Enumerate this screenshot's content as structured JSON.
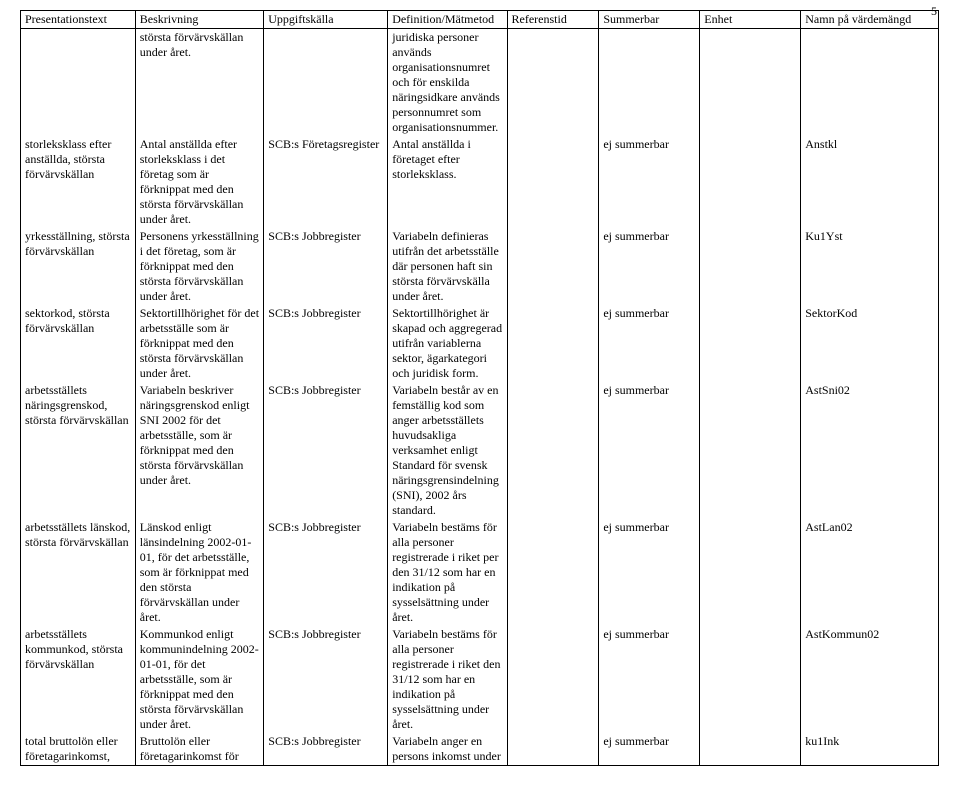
{
  "page_number": "5",
  "columns": [
    "Presentationstext",
    "Beskrivning",
    "Uppgiftskälla",
    "Definition/Mätmetod",
    "Referenstid",
    "Summerbar",
    "Enhet",
    "Namn på värdemängd"
  ],
  "rows": [
    {
      "c1": "",
      "c2": "största förvärvskällan under året.",
      "c3": "",
      "c4": "juridiska personer används organisationsnumret och för enskilda näringsidkare används personnumret som organisationsnummer.",
      "c5": "",
      "c6": "",
      "c7": "",
      "c8": ""
    },
    {
      "c1": "storleksklass efter anställda, största förvärvskällan",
      "c2": "Antal anställda efter storleksklass i det företag som är förknippat med den största förvärvskällan under året.",
      "c3": "SCB:s Företagsregister",
      "c4": "Antal anställda i företaget efter storleksklass.",
      "c5": "",
      "c6": "ej summerbar",
      "c7": "",
      "c8": "Anstkl"
    },
    {
      "c1": "yrkesställning, största förvärvskällan",
      "c2": "Personens yrkesställning i det företag, som är förknippat med den största förvärvskällan under året.",
      "c3": "SCB:s Jobbregister",
      "c4": "Variabeln definieras utifrån det arbetsställe där personen haft sin största förvärvskälla under året.",
      "c5": "",
      "c6": "ej summerbar",
      "c7": "",
      "c8": "Ku1Yst"
    },
    {
      "c1": "sektorkod, största förvärvskällan",
      "c2": "Sektortillhörighet för det arbetsställe som är förknippat med den största förvärvskällan under året.",
      "c3": "SCB:s Jobbregister",
      "c4": "Sektortillhörighet är skapad och aggregerad utifrån variablerna sektor, ägarkategori och juridisk form.",
      "c5": "",
      "c6": "ej summerbar",
      "c7": "",
      "c8": "SektorKod"
    },
    {
      "c1": "arbetsställets näringsgrenskod, största förvärvskällan",
      "c2": "Variabeln beskriver näringsgrenskod enligt SNI 2002 för det arbetsställe, som är förknippat med den största förvärvskällan under året.",
      "c3": "SCB:s Jobbregister",
      "c4": "Variabeln består av en femställig kod som anger arbetsställets huvudsakliga verksamhet enligt Standard för svensk näringsgrensindelning (SNI), 2002 års standard.",
      "c5": "",
      "c6": "ej summerbar",
      "c7": "",
      "c8": "AstSni02"
    },
    {
      "c1": "arbetsställets länskod, största förvärvskällan",
      "c2": "Länskod enligt länsindelning 2002-01-01, för det arbetsställe, som är förknippat med den största förvärvskällan under året.",
      "c3": "SCB:s Jobbregister",
      "c4": "Variabeln bestäms för alla personer registrerade i riket per den 31/12 som har en indikation på sysselsättning under året.",
      "c5": "",
      "c6": "ej summerbar",
      "c7": "",
      "c8": "AstLan02"
    },
    {
      "c1": "arbetsställets kommunkod, största förvärvskällan",
      "c2": "Kommunkod enligt kommunindelning 2002-01-01, för det arbetsställe, som är förknippat med den största förvärvskällan under året.",
      "c3": "SCB:s Jobbregister",
      "c4": "Variabeln bestäms för alla personer registrerade i riket den 31/12 som har en indikation på sysselsättning under året.",
      "c5": "",
      "c6": "ej summerbar",
      "c7": "",
      "c8": "AstKommun02"
    },
    {
      "c1": "total bruttolön eller företagarinkomst,",
      "c2": "Bruttolön eller företagarinkomst för",
      "c3": "SCB:s Jobbregister",
      "c4": "Variabeln anger en persons inkomst under",
      "c5": "",
      "c6": "ej summerbar",
      "c7": "",
      "c8": "ku1Ink"
    }
  ]
}
